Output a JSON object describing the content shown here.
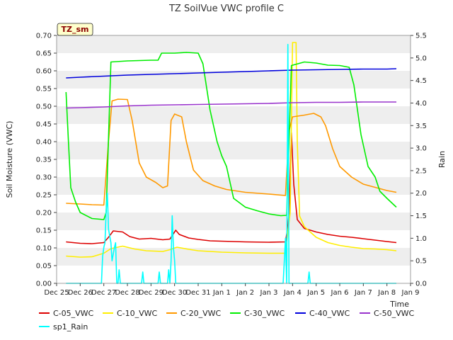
{
  "chart_data": {
    "type": "line",
    "title": "TZ SoilVue VWC profile C",
    "xlabel": "Time",
    "ylabel": "Soil Moisture (VWC)",
    "y2label": "Rain",
    "badge": "TZ_sm",
    "x_ticks": [
      "Dec 25",
      "Dec 26",
      "Dec 27",
      "Dec 28",
      "Dec 29",
      "Dec 30",
      "Dec 31",
      "Jan 1",
      "Jan 2",
      "Jan 3",
      "Jan 4",
      "Jan 5",
      "Jan 6",
      "Jan 7",
      "Jan 8",
      "Jan 9"
    ],
    "xlim": [
      0,
      15
    ],
    "ylim": [
      0,
      0.7
    ],
    "y_ticks": [
      "0.00",
      "0.05",
      "0.10",
      "0.15",
      "0.20",
      "0.25",
      "0.30",
      "0.35",
      "0.40",
      "0.45",
      "0.50",
      "0.55",
      "0.60",
      "0.65",
      "0.70"
    ],
    "y2lim": [
      0,
      5.5
    ],
    "y2_ticks": [
      "0.0",
      "0.5",
      "1.0",
      "1.5",
      "2.0",
      "2.5",
      "3.0",
      "3.5",
      "4.0",
      "4.5",
      "5.0",
      "5.5"
    ],
    "grid": true,
    "legend_position": "bottom",
    "series": [
      {
        "name": "C-05_VWC",
        "color": "#dd0000",
        "axis": "left",
        "points": [
          [
            0.4,
            0.117
          ],
          [
            1.0,
            0.113
          ],
          [
            1.5,
            0.112
          ],
          [
            2.0,
            0.115
          ],
          [
            2.2,
            0.13
          ],
          [
            2.4,
            0.148
          ],
          [
            2.8,
            0.145
          ],
          [
            3.1,
            0.132
          ],
          [
            3.5,
            0.125
          ],
          [
            4.0,
            0.127
          ],
          [
            4.5,
            0.123
          ],
          [
            4.8,
            0.125
          ],
          [
            4.95,
            0.14
          ],
          [
            5.05,
            0.15
          ],
          [
            5.2,
            0.138
          ],
          [
            5.6,
            0.128
          ],
          [
            6.0,
            0.124
          ],
          [
            6.5,
            0.12
          ],
          [
            7.0,
            0.119
          ],
          [
            8.0,
            0.117
          ],
          [
            9.0,
            0.116
          ],
          [
            9.7,
            0.117
          ],
          [
            9.8,
            0.16
          ],
          [
            9.85,
            0.2
          ],
          [
            9.95,
            0.425
          ],
          [
            10.05,
            0.28
          ],
          [
            10.2,
            0.18
          ],
          [
            10.5,
            0.155
          ],
          [
            11.0,
            0.145
          ],
          [
            11.5,
            0.138
          ],
          [
            12.0,
            0.133
          ],
          [
            12.5,
            0.13
          ],
          [
            13.0,
            0.126
          ],
          [
            13.5,
            0.122
          ],
          [
            14.0,
            0.118
          ],
          [
            14.4,
            0.115
          ]
        ]
      },
      {
        "name": "C-10_VWC",
        "color": "#ffee00",
        "axis": "left",
        "points": [
          [
            0.4,
            0.077
          ],
          [
            1.0,
            0.074
          ],
          [
            1.5,
            0.075
          ],
          [
            2.0,
            0.085
          ],
          [
            2.3,
            0.098
          ],
          [
            2.8,
            0.105
          ],
          [
            3.3,
            0.097
          ],
          [
            3.8,
            0.092
          ],
          [
            4.5,
            0.09
          ],
          [
            4.8,
            0.095
          ],
          [
            5.1,
            0.102
          ],
          [
            5.6,
            0.096
          ],
          [
            6.0,
            0.092
          ],
          [
            7.0,
            0.088
          ],
          [
            8.0,
            0.086
          ],
          [
            9.0,
            0.085
          ],
          [
            9.7,
            0.085
          ],
          [
            9.9,
            0.2
          ],
          [
            10.0,
            0.68
          ],
          [
            10.15,
            0.68
          ],
          [
            10.2,
            0.4
          ],
          [
            10.3,
            0.19
          ],
          [
            10.5,
            0.16
          ],
          [
            11.0,
            0.13
          ],
          [
            11.5,
            0.115
          ],
          [
            12.0,
            0.107
          ],
          [
            12.5,
            0.102
          ],
          [
            13.0,
            0.098
          ],
          [
            13.5,
            0.097
          ],
          [
            14.0,
            0.095
          ],
          [
            14.4,
            0.092
          ]
        ]
      },
      {
        "name": "C-20_VWC",
        "color": "#ff9900",
        "axis": "left",
        "points": [
          [
            0.4,
            0.226
          ],
          [
            1.0,
            0.224
          ],
          [
            1.5,
            0.222
          ],
          [
            2.0,
            0.221
          ],
          [
            2.2,
            0.4
          ],
          [
            2.35,
            0.515
          ],
          [
            2.6,
            0.52
          ],
          [
            3.0,
            0.519
          ],
          [
            3.2,
            0.46
          ],
          [
            3.5,
            0.34
          ],
          [
            3.8,
            0.3
          ],
          [
            4.2,
            0.285
          ],
          [
            4.5,
            0.27
          ],
          [
            4.7,
            0.275
          ],
          [
            4.85,
            0.46
          ],
          [
            5.0,
            0.478
          ],
          [
            5.3,
            0.47
          ],
          [
            5.5,
            0.4
          ],
          [
            5.8,
            0.32
          ],
          [
            6.2,
            0.29
          ],
          [
            6.7,
            0.275
          ],
          [
            7.2,
            0.265
          ],
          [
            8.0,
            0.257
          ],
          [
            9.0,
            0.252
          ],
          [
            9.7,
            0.248
          ],
          [
            9.85,
            0.43
          ],
          [
            10.0,
            0.47
          ],
          [
            10.5,
            0.475
          ],
          [
            10.9,
            0.48
          ],
          [
            11.2,
            0.47
          ],
          [
            11.4,
            0.445
          ],
          [
            11.7,
            0.38
          ],
          [
            12.0,
            0.33
          ],
          [
            12.5,
            0.3
          ],
          [
            13.0,
            0.28
          ],
          [
            13.5,
            0.271
          ],
          [
            14.0,
            0.262
          ],
          [
            14.4,
            0.257
          ]
        ]
      },
      {
        "name": "C-30_VWC",
        "color": "#00ee00",
        "axis": "left",
        "points": [
          [
            0.4,
            0.54
          ],
          [
            0.5,
            0.4
          ],
          [
            0.6,
            0.27
          ],
          [
            0.8,
            0.23
          ],
          [
            1.0,
            0.2
          ],
          [
            1.5,
            0.183
          ],
          [
            2.0,
            0.18
          ],
          [
            2.1,
            0.2
          ],
          [
            2.3,
            0.625
          ],
          [
            3.0,
            0.628
          ],
          [
            4.0,
            0.63
          ],
          [
            4.3,
            0.63
          ],
          [
            4.45,
            0.65
          ],
          [
            5.0,
            0.65
          ],
          [
            5.5,
            0.652
          ],
          [
            6.0,
            0.65
          ],
          [
            6.2,
            0.62
          ],
          [
            6.5,
            0.49
          ],
          [
            6.8,
            0.4
          ],
          [
            7.0,
            0.36
          ],
          [
            7.2,
            0.33
          ],
          [
            7.5,
            0.24
          ],
          [
            8.0,
            0.215
          ],
          [
            8.5,
            0.205
          ],
          [
            9.0,
            0.196
          ],
          [
            9.5,
            0.191
          ],
          [
            9.75,
            0.192
          ],
          [
            9.85,
            0.4
          ],
          [
            9.95,
            0.615
          ],
          [
            10.5,
            0.625
          ],
          [
            11.0,
            0.622
          ],
          [
            11.5,
            0.616
          ],
          [
            12.0,
            0.615
          ],
          [
            12.4,
            0.61
          ],
          [
            12.6,
            0.56
          ],
          [
            12.9,
            0.42
          ],
          [
            13.2,
            0.33
          ],
          [
            13.5,
            0.3
          ],
          [
            13.7,
            0.26
          ],
          [
            14.0,
            0.24
          ],
          [
            14.4,
            0.215
          ]
        ]
      },
      {
        "name": "C-40_VWC",
        "color": "#0000dd",
        "axis": "left",
        "points": [
          [
            0.4,
            0.58
          ],
          [
            1.0,
            0.582
          ],
          [
            2.0,
            0.585
          ],
          [
            3.0,
            0.588
          ],
          [
            4.0,
            0.59
          ],
          [
            5.0,
            0.592
          ],
          [
            6.0,
            0.594
          ],
          [
            7.0,
            0.596
          ],
          [
            8.0,
            0.598
          ],
          [
            9.0,
            0.6
          ],
          [
            10.0,
            0.602
          ],
          [
            11.0,
            0.603
          ],
          [
            12.0,
            0.604
          ],
          [
            13.0,
            0.605
          ],
          [
            14.0,
            0.605
          ],
          [
            14.4,
            0.606
          ]
        ]
      },
      {
        "name": "C-50_VWC",
        "color": "#9933cc",
        "axis": "left",
        "points": [
          [
            0.4,
            0.495
          ],
          [
            1.0,
            0.496
          ],
          [
            2.0,
            0.498
          ],
          [
            3.0,
            0.501
          ],
          [
            4.0,
            0.503
          ],
          [
            5.0,
            0.504
          ],
          [
            6.0,
            0.505
          ],
          [
            7.0,
            0.506
          ],
          [
            8.0,
            0.507
          ],
          [
            9.0,
            0.508
          ],
          [
            10.0,
            0.51
          ],
          [
            11.0,
            0.511
          ],
          [
            12.0,
            0.511
          ],
          [
            13.0,
            0.512
          ],
          [
            14.0,
            0.512
          ],
          [
            14.4,
            0.512
          ]
        ]
      },
      {
        "name": "sp1_Rain",
        "color": "#00ffff",
        "axis": "right",
        "points": [
          [
            0.4,
            0.0
          ],
          [
            1.9,
            0.0
          ],
          [
            1.95,
            0.6
          ],
          [
            2.0,
            0.8
          ],
          [
            2.05,
            0.9
          ],
          [
            2.1,
            1.6
          ],
          [
            2.15,
            2.0
          ],
          [
            2.2,
            1.2
          ],
          [
            2.3,
            0.9
          ],
          [
            2.35,
            0.5
          ],
          [
            2.45,
            0.8
          ],
          [
            2.5,
            0.9
          ],
          [
            2.55,
            0.0
          ],
          [
            2.6,
            0.0
          ],
          [
            2.65,
            0.3
          ],
          [
            2.7,
            0.0
          ],
          [
            3.6,
            0.0
          ],
          [
            3.65,
            0.25
          ],
          [
            3.7,
            0.0
          ],
          [
            4.3,
            0.0
          ],
          [
            4.35,
            0.25
          ],
          [
            4.4,
            0.0
          ],
          [
            4.7,
            0.0
          ],
          [
            4.75,
            0.3
          ],
          [
            4.8,
            0.0
          ],
          [
            4.85,
            0.5
          ],
          [
            4.9,
            1.5
          ],
          [
            4.95,
            0.8
          ],
          [
            5.0,
            0.5
          ],
          [
            5.05,
            0.0
          ],
          [
            9.6,
            0.0
          ],
          [
            9.65,
            0.5
          ],
          [
            9.7,
            1.0
          ],
          [
            9.75,
            0.0
          ],
          [
            9.8,
            5.3
          ],
          [
            9.85,
            0.0
          ],
          [
            10.65,
            0.0
          ],
          [
            10.7,
            0.25
          ],
          [
            10.75,
            0.0
          ],
          [
            14.4,
            0.0
          ]
        ]
      }
    ]
  }
}
